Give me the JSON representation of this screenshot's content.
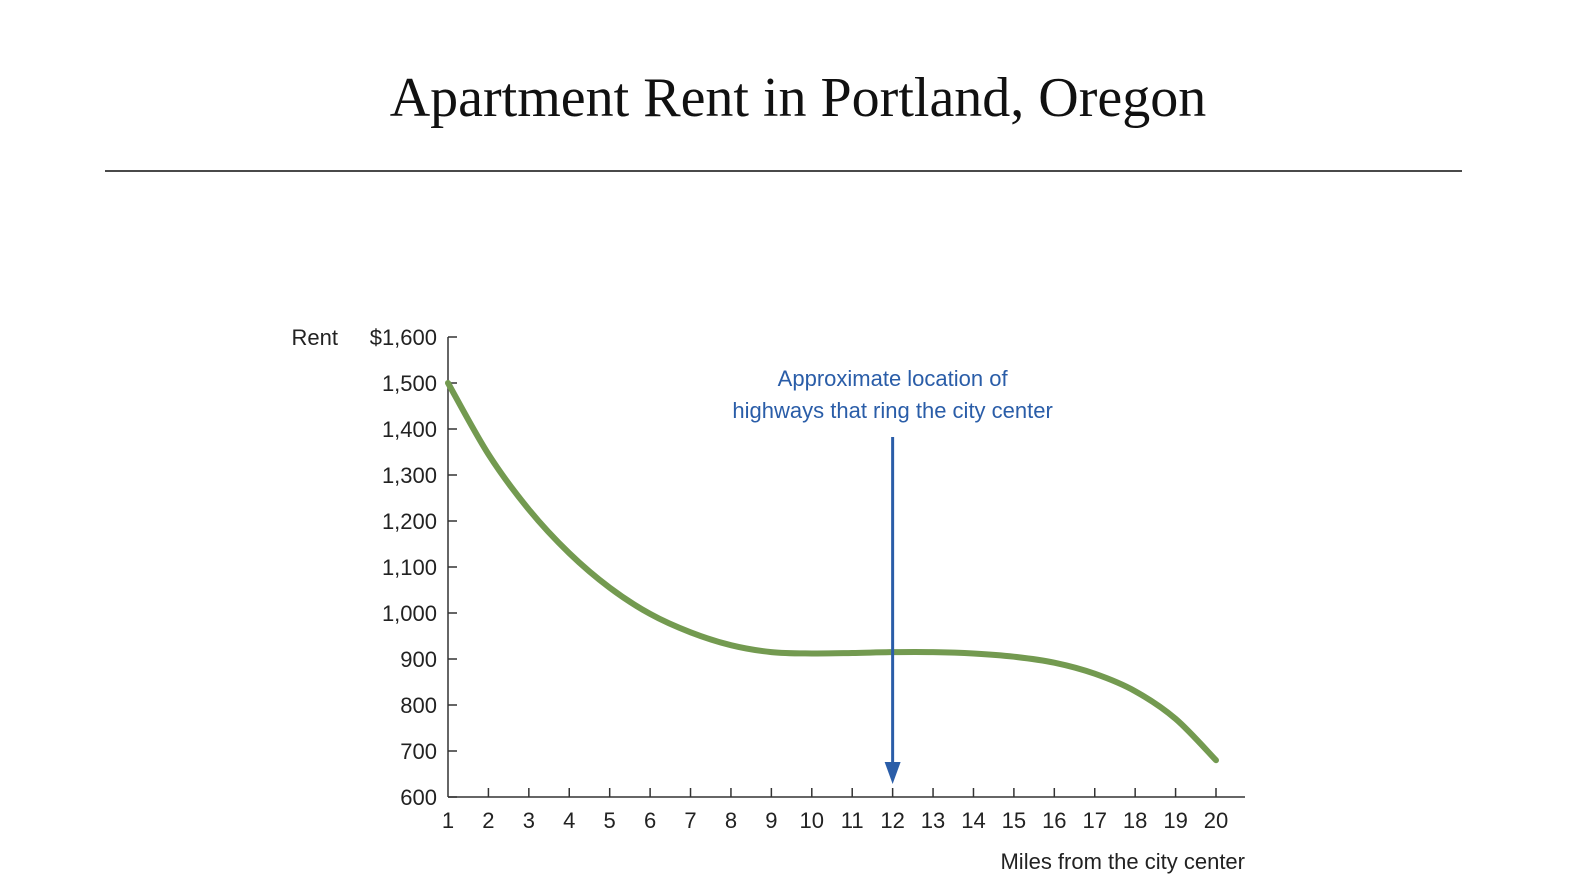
{
  "slide": {
    "title": "Apartment Rent in Portland, Oregon"
  },
  "chart_data": {
    "type": "line",
    "title": "",
    "xlabel": "Miles from the city center",
    "ylabel": "Rent",
    "xlim": [
      1,
      20
    ],
    "ylim": [
      600,
      1600
    ],
    "x_ticks": [
      1,
      2,
      3,
      4,
      5,
      6,
      7,
      8,
      9,
      10,
      11,
      12,
      13,
      14,
      15,
      16,
      17,
      18,
      19,
      20
    ],
    "x_tick_labels": [
      "1",
      "2",
      "3",
      "4",
      "5",
      "6",
      "7",
      "8",
      "9",
      "10",
      "11",
      "12",
      "13",
      "14",
      "15",
      "16",
      "17",
      "18",
      "19",
      "20"
    ],
    "y_ticks": [
      600,
      700,
      800,
      900,
      1000,
      1100,
      1200,
      1300,
      1400,
      1500,
      1600
    ],
    "y_tick_labels": [
      "600",
      "700",
      "800",
      "900",
      "1,000",
      "1,100",
      "1,200",
      "1,300",
      "1,400",
      "1,500",
      "$1,600"
    ],
    "grid": false,
    "series": [
      {
        "color": "#739a50",
        "x": [
          1,
          2,
          3,
          4,
          5,
          6,
          7,
          8,
          9,
          10,
          11,
          12,
          13,
          14,
          15,
          16,
          17,
          18,
          19,
          20
        ],
        "values": [
          1500,
          1345,
          1225,
          1130,
          1055,
          998,
          958,
          930,
          915,
          912,
          913,
          915,
          915,
          912,
          905,
          892,
          868,
          830,
          770,
          680
        ]
      }
    ],
    "annotations": [
      {
        "lines": [
          "Approximate location of",
          "highways that ring the city center"
        ],
        "arrow_x": 12,
        "color": "#2a5da8"
      }
    ]
  }
}
